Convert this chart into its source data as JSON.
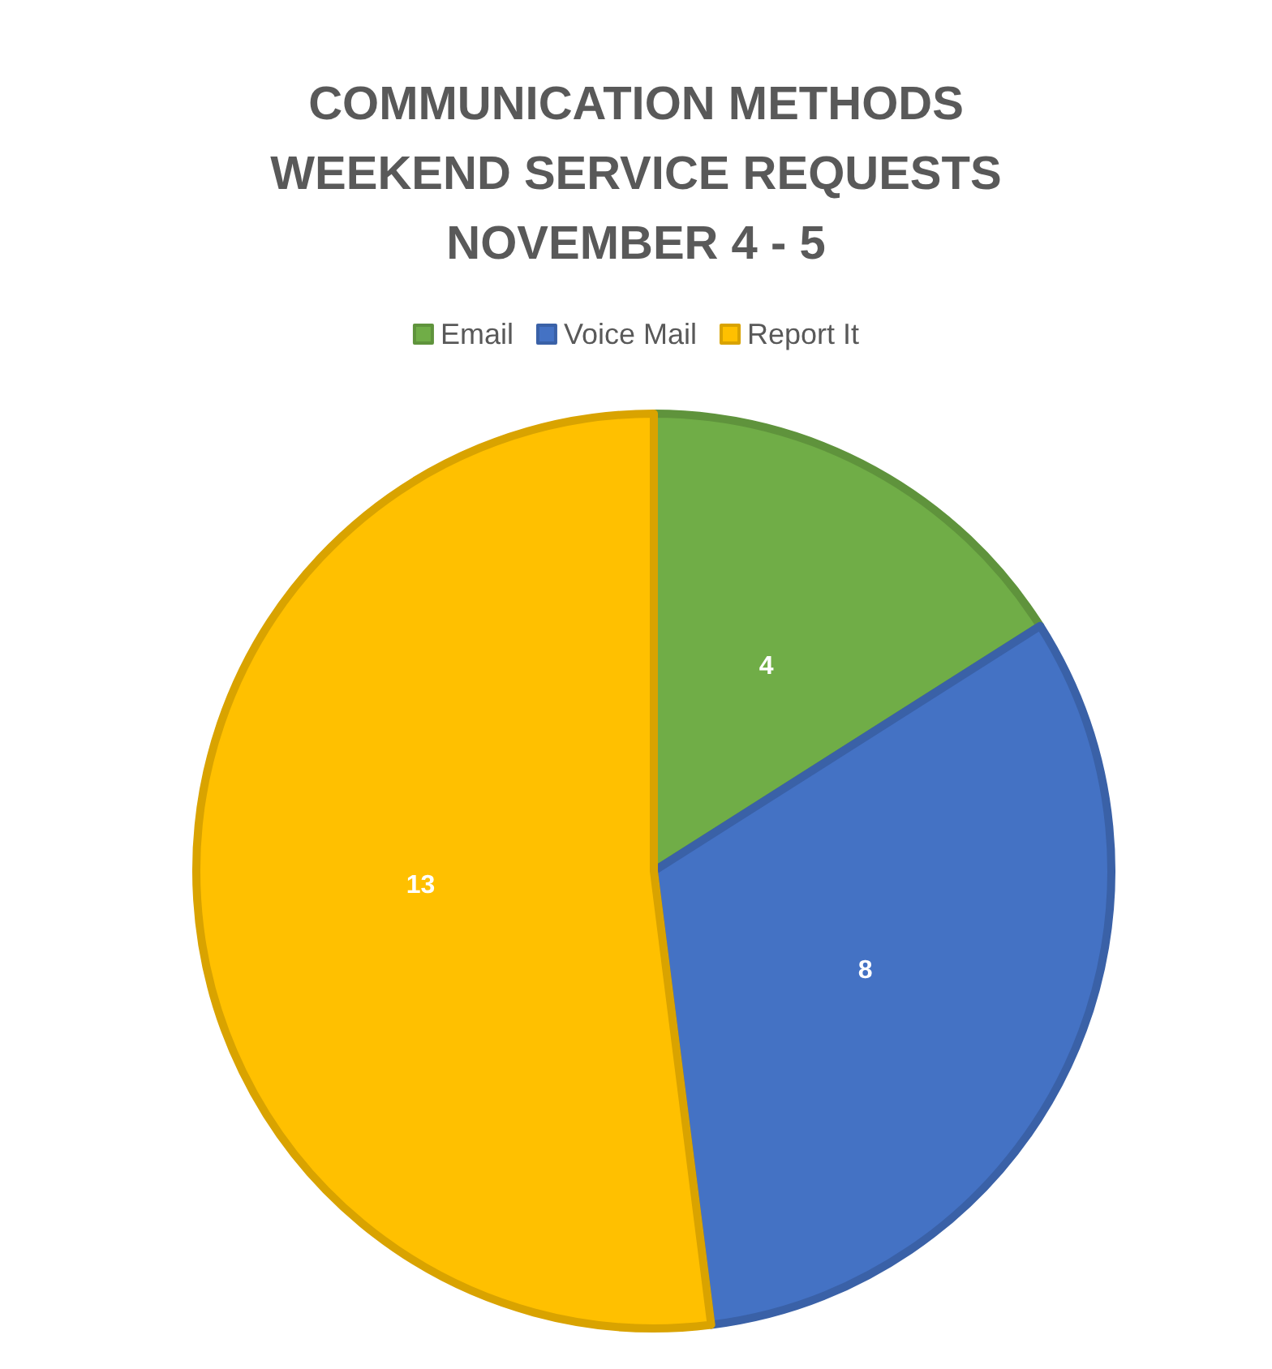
{
  "chart_data": {
    "type": "pie",
    "title": "COMMUNICATION METHODS\nWEEKEND SERVICE REQUESTS\nNOVEMBER 4 - 5",
    "categories": [
      "Email",
      "Voice Mail",
      "Report It"
    ],
    "values": [
      4,
      8,
      13
    ],
    "colors": [
      "#70ad47",
      "#4472c4",
      "#ffc000"
    ],
    "data_labels": true,
    "legend": "top"
  }
}
